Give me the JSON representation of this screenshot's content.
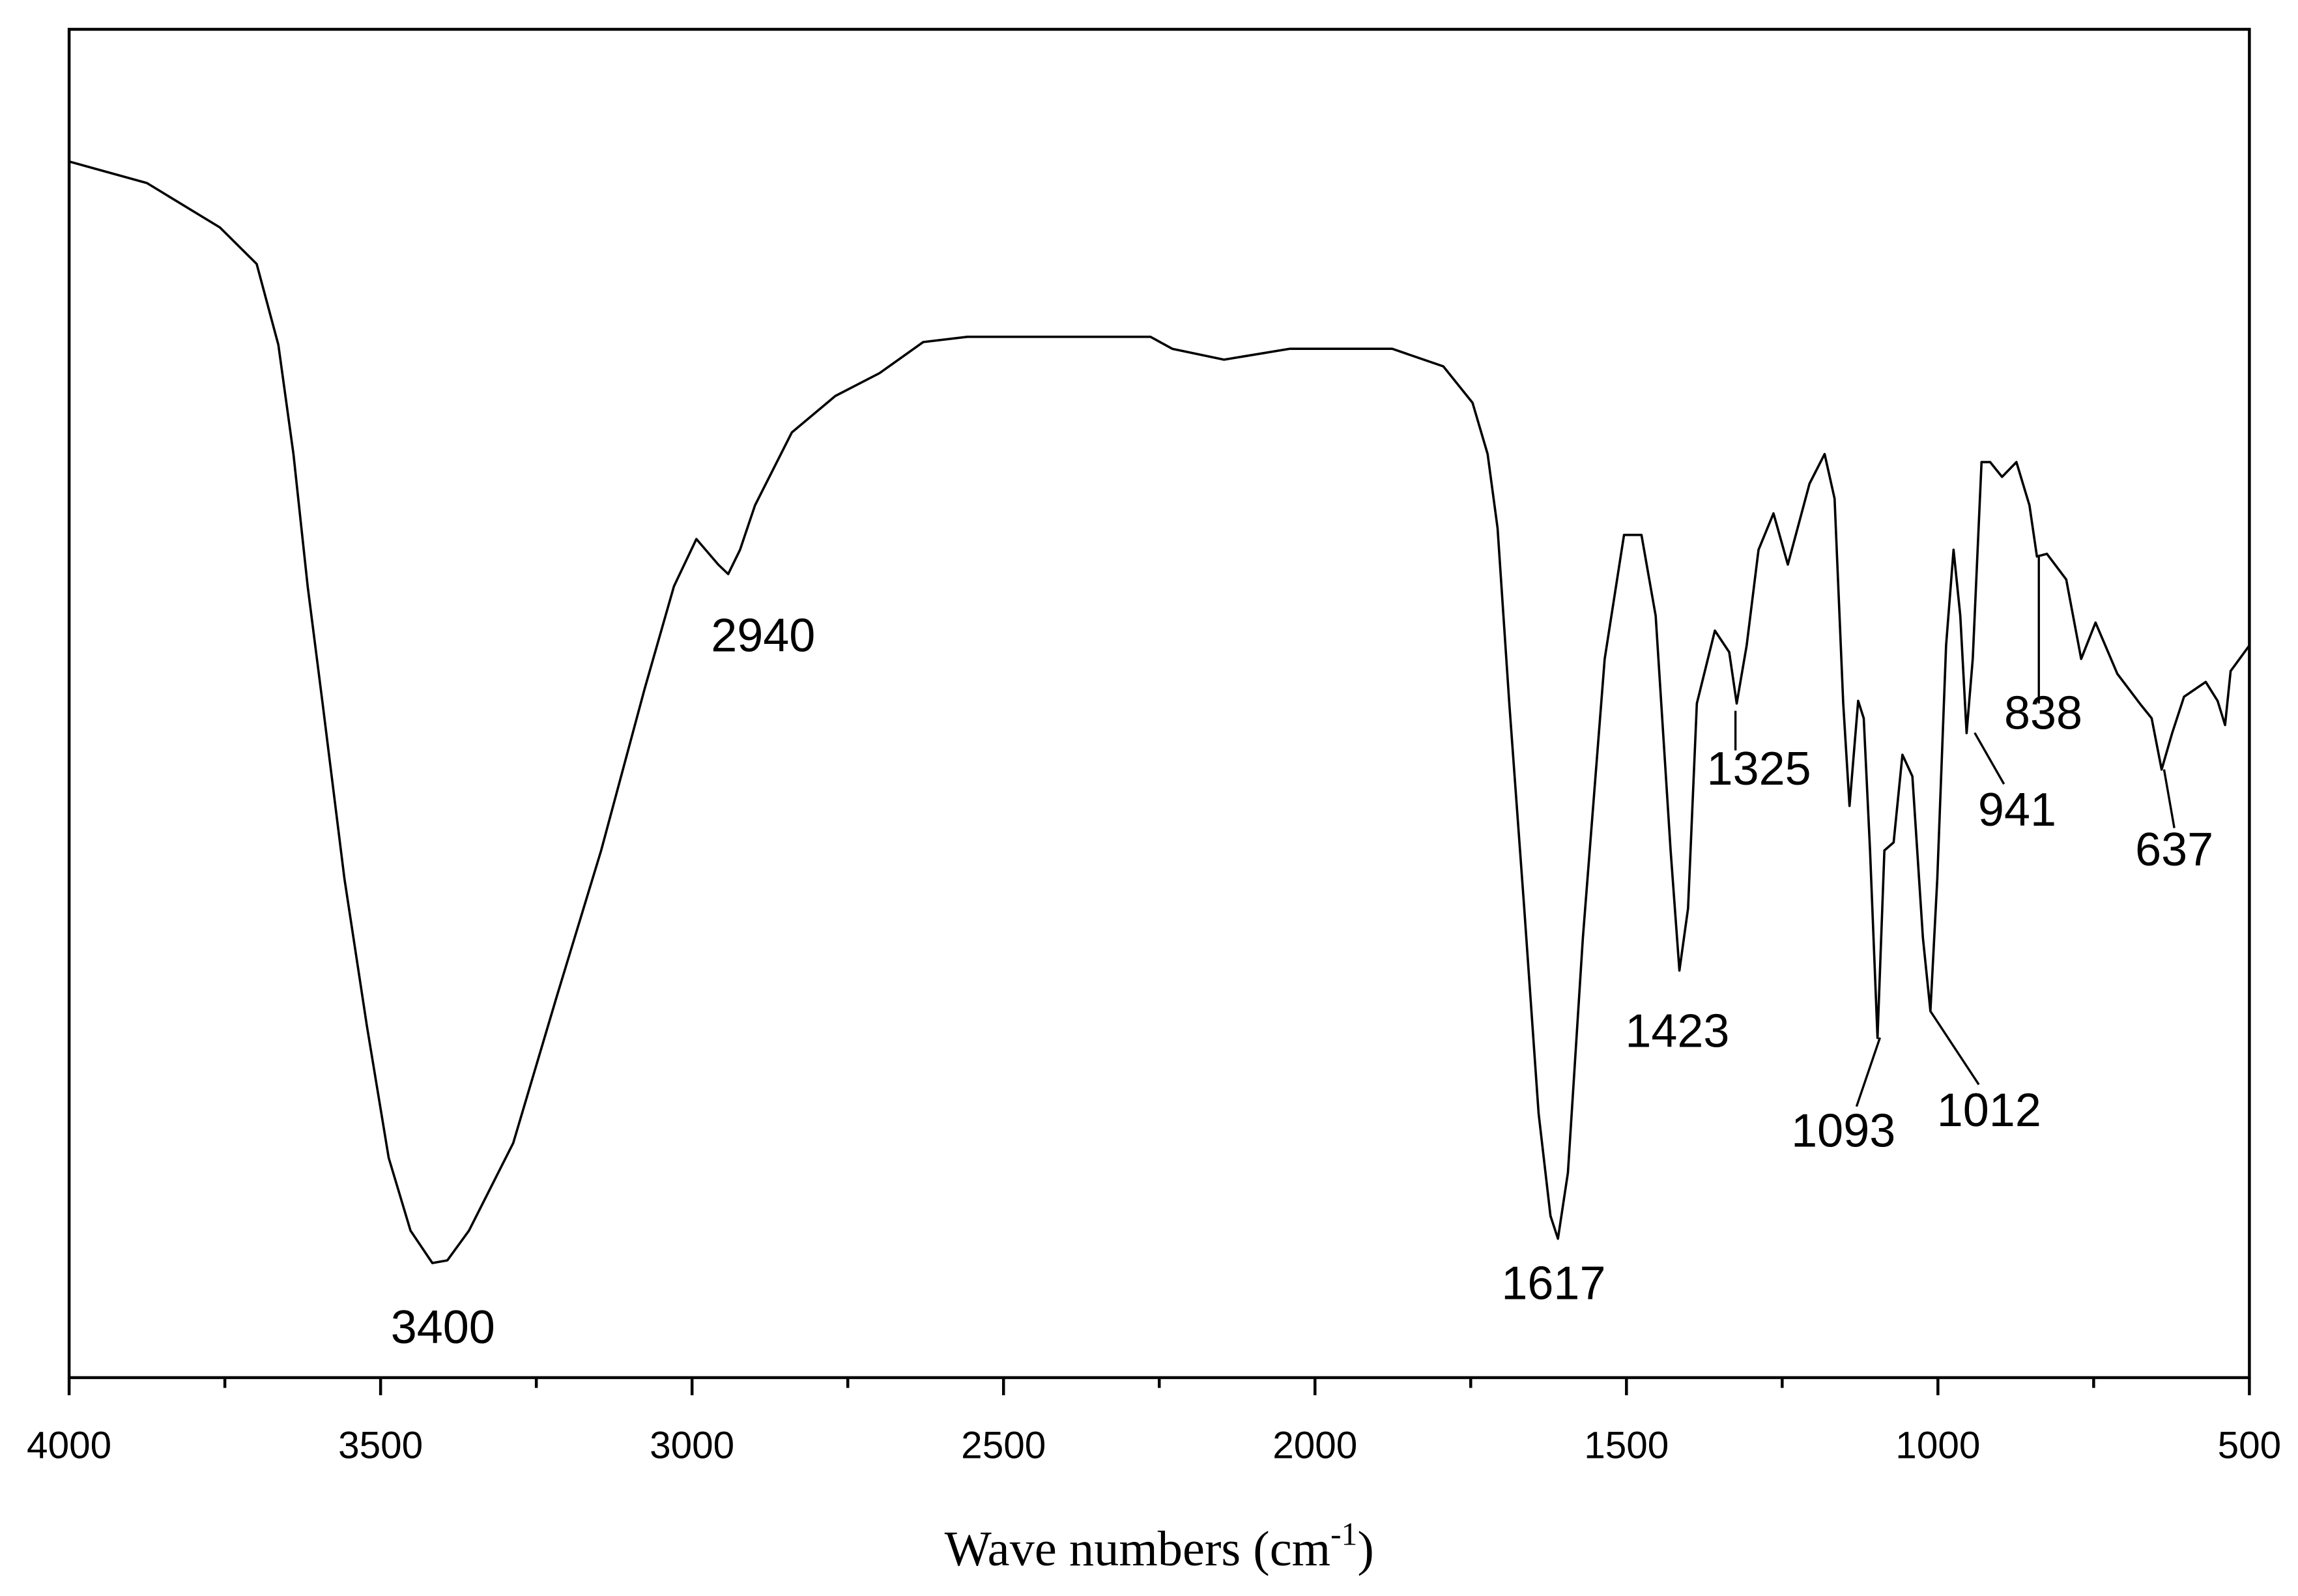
{
  "chart_data": {
    "type": "line",
    "xlabel": [
      "Wave numbers (cm",
      "-1",
      ")"
    ],
    "xlim": [
      4000,
      500
    ],
    "xticks": [
      4000,
      3500,
      3000,
      2500,
      2000,
      1500,
      1000,
      500
    ],
    "ylim": [
      0,
      100
    ],
    "color": "#000000",
    "x": [
      4000,
      3875,
      3758,
      3699,
      3664,
      3640,
      3617,
      3593,
      3558,
      3522,
      3487,
      3452,
      3417,
      3393,
      3358,
      3287,
      3217,
      3146,
      3076,
      3029,
      2993,
      2958,
      2942,
      2923,
      2899,
      2840,
      2770,
      2699,
      2629,
      2558,
      2264,
      2229,
      2146,
      2041,
      1876,
      1794,
      1747,
      1723,
      1707,
      1688,
      1664,
      1641,
      1622,
      1610,
      1594,
      1570,
      1535,
      1504,
      1476,
      1453,
      1429,
      1415,
      1401,
      1387,
      1358,
      1335,
      1323,
      1307,
      1288,
      1264,
      1241,
      1206,
      1182,
      1166,
      1152,
      1142,
      1128,
      1119,
      1109,
      1097,
      1086,
      1071,
      1057,
      1041,
      1024,
      1012,
      1001,
      987,
      975,
      964,
      954,
      944,
      930,
      916,
      897,
      874,
      853,
      841,
      825,
      794,
      770,
      747,
      712,
      676,
      657,
      641,
      624,
      605,
      570,
      551,
      539,
      530,
      500
    ],
    "values": [
      90.2,
      88.6,
      85.3,
      82.6,
      76.6,
      68.5,
      58.7,
      50,
      37,
      26.1,
      16.3,
      10.9,
      8.5,
      8.7,
      10.9,
      17.4,
      28.3,
      39.1,
      51.1,
      58.7,
      62.2,
      60.3,
      59.6,
      61.4,
      64.7,
      70.1,
      72.8,
      74.5,
      76.8,
      77.2,
      77.2,
      76.3,
      75.5,
      76.3,
      76.3,
      75,
      72.3,
      68.5,
      63,
      50,
      34.8,
      19.6,
      12,
      10.3,
      15.2,
      32.6,
      53.3,
      62.5,
      62.5,
      56.5,
      39.1,
      30.2,
      34.8,
      50,
      55.4,
      53.8,
      50,
      54.3,
      61.4,
      64.1,
      60.3,
      66.3,
      68.5,
      65.2,
      50,
      42.4,
      50.2,
      48.9,
      39.1,
      25.2,
      39.1,
      39.7,
      46.2,
      44.6,
      32.6,
      27.2,
      37,
      54.3,
      61.4,
      56.5,
      47.8,
      53.3,
      67.9,
      67.9,
      66.8,
      67.9,
      64.7,
      60.9,
      61.1,
      59.2,
      53.3,
      56,
      52.2,
      50,
      48.9,
      45.1,
      47.8,
      50.5,
      51.6,
      50.2,
      48.4,
      52.4,
      54.3
    ],
    "annotations": [
      {
        "x": 3400,
        "label": "3400"
      },
      {
        "x": 2940,
        "label": "2940"
      },
      {
        "x": 1617,
        "label": "1617"
      },
      {
        "x": 1423,
        "label": "1423"
      },
      {
        "x": 1325,
        "label": "1325"
      },
      {
        "x": 1093,
        "label": "1093"
      },
      {
        "x": 1012,
        "label": "1012"
      },
      {
        "x": 941,
        "label": "941"
      },
      {
        "x": 838,
        "label": "838"
      },
      {
        "x": 637,
        "label": "637"
      }
    ]
  }
}
